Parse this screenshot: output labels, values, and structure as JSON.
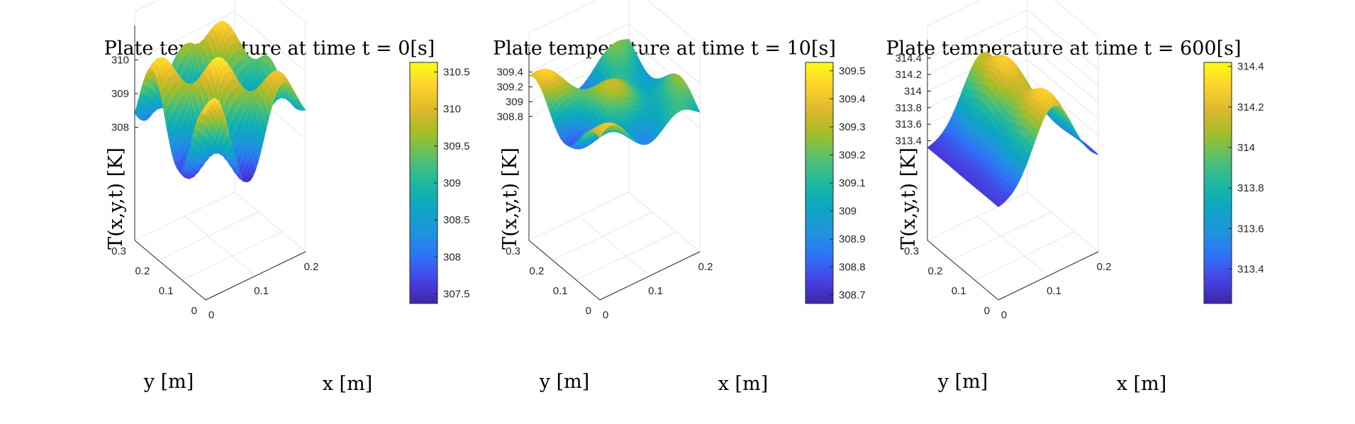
{
  "colormap": [
    "#3e26a8",
    "#4743e6",
    "#2d75f6",
    "#1e95db",
    "#0ca7c1",
    "#1fb7a1",
    "#55c06e",
    "#a2bd2b",
    "#dbb92c",
    "#fdd12b",
    "#f9fb15"
  ],
  "chart_data": [
    {
      "type": "surface",
      "title": "Plate temperature at time t = 0[s]",
      "xlabel": "x [m]",
      "ylabel": "y [m]",
      "zlabel": "T(x,y,t) [K]",
      "xticks": [
        "0",
        "0.1",
        "0.2"
      ],
      "yticks": [
        "0",
        "0.1",
        "0.2",
        "0.3"
      ],
      "zticks": [
        "308",
        "309",
        "310"
      ],
      "xlim": [
        0,
        0.2
      ],
      "ylim": [
        0,
        0.3
      ],
      "zlim": [
        307.4,
        310.6
      ],
      "zticks_values": [
        308,
        309,
        310
      ],
      "colorbar": {
        "ticks": [
          "307.5",
          "308",
          "308.5",
          "309",
          "309.5",
          "310",
          "310.5"
        ],
        "values": [
          307.5,
          308,
          308.5,
          309,
          309.5,
          310,
          310.5
        ],
        "range": [
          307.37,
          310.63
        ]
      },
      "field": {
        "mean": 309.0,
        "amp": 1.55,
        "kind": "ripple"
      }
    },
    {
      "type": "surface",
      "title": "Plate temperature at time t = 10[s]",
      "xlabel": "x [m]",
      "ylabel": "y [m]",
      "zlabel": "T(x,y,t) [K]",
      "xticks": [
        "0",
        "0.1",
        "0.2"
      ],
      "yticks": [
        "0",
        "0.1",
        "0.2",
        "0.3"
      ],
      "zticks": [
        "308.8",
        "309",
        "309.2",
        "309.4"
      ],
      "xlim": [
        0,
        0.2
      ],
      "ylim": [
        0,
        0.3
      ],
      "zlim": [
        308.67,
        309.55
      ],
      "zticks_values": [
        308.8,
        309,
        309.2,
        309.4
      ],
      "colorbar": {
        "ticks": [
          "308.7",
          "308.8",
          "308.9",
          "309",
          "309.1",
          "309.2",
          "309.3",
          "309.4",
          "309.5"
        ],
        "values": [
          308.7,
          308.8,
          308.9,
          309,
          309.1,
          309.2,
          309.3,
          309.4,
          309.5
        ],
        "range": [
          308.67,
          309.53
        ]
      },
      "field": {
        "mean": 309.1,
        "amp": 0.42,
        "kind": "ripple-smooth"
      }
    },
    {
      "type": "surface",
      "title": "Plate temperature at time t = 600[s]",
      "xlabel": "x [m]",
      "ylabel": "y [m]",
      "zlabel": "T(x,y,t) [K]",
      "xticks": [
        "0",
        "0.1",
        "0.2"
      ],
      "yticks": [
        "0",
        "0.1",
        "0.2",
        "0.3"
      ],
      "zticks": [
        "313.4",
        "313.6",
        "313.8",
        "314",
        "314.2",
        "314.4"
      ],
      "xlim": [
        0,
        0.2
      ],
      "ylim": [
        0,
        0.3
      ],
      "zlim": [
        313.25,
        314.45
      ],
      "zticks_values": [
        313.4,
        313.6,
        313.8,
        314,
        314.2,
        314.4
      ],
      "colorbar": {
        "ticks": [
          "313.4",
          "313.6",
          "313.8",
          "314",
          "314.2",
          "314.4"
        ],
        "values": [
          313.4,
          313.6,
          313.8,
          314,
          314.2,
          314.4
        ],
        "range": [
          313.23,
          314.42
        ]
      },
      "field": {
        "mean": 313.3,
        "amp": 1.0,
        "kind": "ridge"
      }
    }
  ]
}
